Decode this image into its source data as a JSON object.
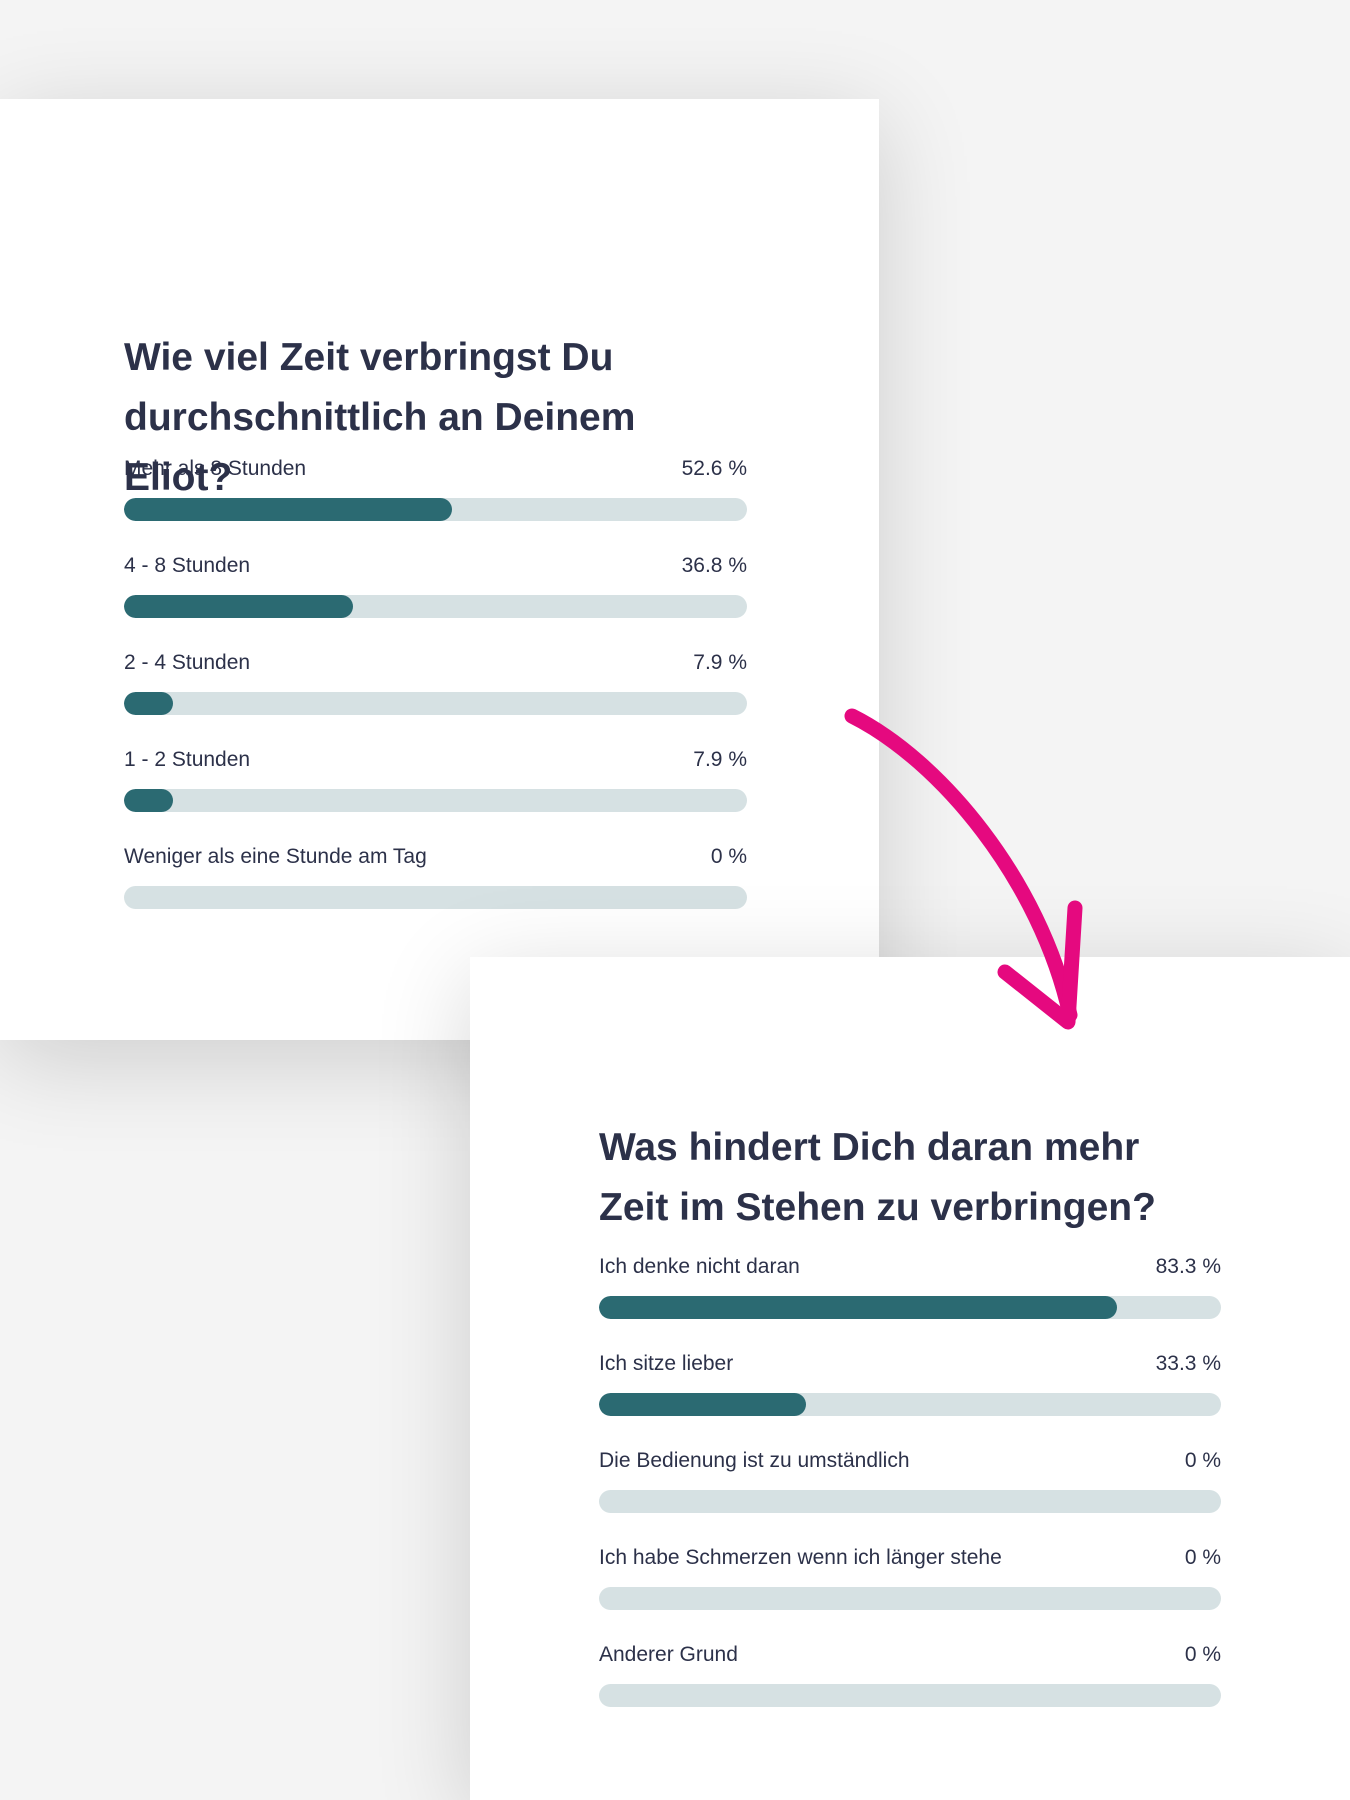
{
  "chart_data": [
    {
      "type": "bar",
      "orientation": "horizontal",
      "title": "Wie viel Zeit verbringst Du durchschnittlich an Deinem Eliot?",
      "categories": [
        "Mehr als 8 Stunden",
        "4 - 8 Stunden",
        "2 - 4 Stunden",
        "1 - 2 Stunden",
        "Weniger als eine Stunde am Tag"
      ],
      "values": [
        52.6,
        36.8,
        7.9,
        7.9,
        0
      ],
      "value_labels": [
        "52.6 %",
        "36.8 %",
        "7.9 %",
        "7.9 %",
        "0 %"
      ],
      "xlim": [
        0,
        100
      ],
      "color": "#2b6a72",
      "track_color": "#d6e1e3"
    },
    {
      "type": "bar",
      "orientation": "horizontal",
      "title": "Was hindert Dich daran mehr Zeit im Stehen zu verbringen?",
      "categories": [
        "Ich denke nicht daran",
        "Ich sitze lieber",
        "Die Bedienung ist zu umständlich",
        "Ich habe Schmerzen wenn ich länger stehe",
        "Anderer Grund"
      ],
      "values": [
        83.3,
        33.3,
        0,
        0,
        0
      ],
      "value_labels": [
        "83.3 %",
        "33.3 %",
        "0 %",
        "0 %",
        "0 %"
      ],
      "xlim": [
        0,
        100
      ],
      "color": "#2b6a72",
      "track_color": "#d6e1e3"
    }
  ]
}
